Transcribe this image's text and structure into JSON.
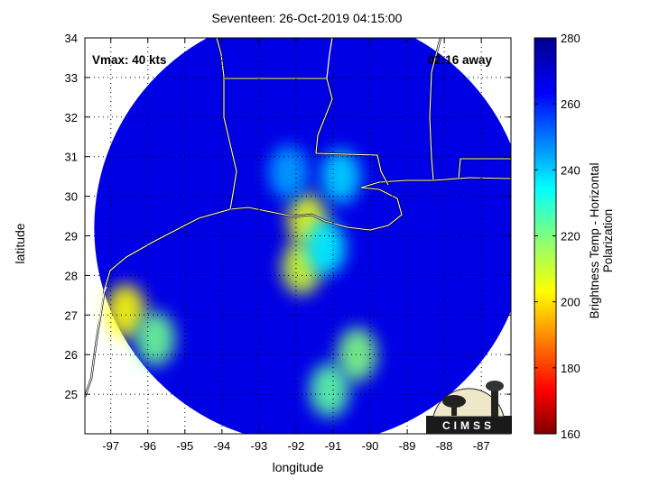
{
  "chart_data": {
    "type": "heatmap",
    "title": "Seventeen: 26-Oct-2019 04:15:00",
    "xlabel": "longitude",
    "ylabel": "latitude",
    "xlim": [
      -97.7,
      -86.2
    ],
    "ylim": [
      24,
      34
    ],
    "xticks": [
      -97,
      -96,
      -95,
      -94,
      -93,
      -92,
      -91,
      -90,
      -89,
      -88,
      -87
    ],
    "yticks": [
      25,
      26,
      27,
      28,
      29,
      30,
      31,
      32,
      33,
      34
    ],
    "grid": true,
    "annotations": {
      "vmax": "Vmax: 40 kts",
      "time_away": "02:16 away"
    },
    "colorbar": {
      "label": "Brightness Temp - Horizontal Polarization",
      "range": [
        160,
        280
      ],
      "ticks": [
        160,
        180,
        200,
        220,
        240,
        260,
        280
      ],
      "colormap": "jet"
    },
    "swath": {
      "center_lon": -91.6,
      "center_lat": 29.2,
      "background_value": 268
    },
    "features": [
      {
        "lon": -96.6,
        "lat": 27.1,
        "value": 205
      },
      {
        "lon": -95.8,
        "lat": 26.4,
        "value": 222
      },
      {
        "lon": -91.7,
        "lat": 29.4,
        "value": 208
      },
      {
        "lon": -91.85,
        "lat": 28.2,
        "value": 210
      },
      {
        "lon": -90.35,
        "lat": 26.0,
        "value": 220
      },
      {
        "lon": -91.1,
        "lat": 25.1,
        "value": 224
      },
      {
        "lon": -91.2,
        "lat": 28.7,
        "value": 236
      },
      {
        "lon": -90.8,
        "lat": 30.5,
        "value": 240
      },
      {
        "lon": -92.2,
        "lat": 30.6,
        "value": 246
      }
    ]
  },
  "logo": {
    "text": "CIMSS"
  }
}
